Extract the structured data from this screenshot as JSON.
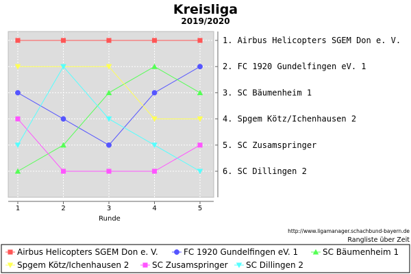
{
  "chart_data": {
    "type": "line",
    "title": "Kreisliga",
    "subtitle": "2019/2020",
    "xlabel": "Runde",
    "x": [
      1,
      2,
      3,
      4,
      5
    ],
    "ylim": [
      1,
      6
    ],
    "y_inverted": true,
    "grid": true,
    "legend_position": "bottom",
    "right_labels": [
      "1. Airbus Helicopters SGEM Don e. V.",
      "2. FC 1920 Gundelfingen eV.  1",
      "3. SC Bäumenheim 1",
      "4. Spgem Kötz/Ichenhausen  2",
      "5. SC Zusamspringer",
      "6. SC Dillingen 2"
    ],
    "series": [
      {
        "name": "Airbus Helicopters SGEM Don e. V.",
        "values": [
          1,
          1,
          1,
          1,
          1
        ],
        "color": "#ff5555",
        "marker": "square"
      },
      {
        "name": "FC 1920 Gundelfingen eV.  1",
        "values": [
          3,
          4,
          5,
          3,
          2
        ],
        "color": "#5555ff",
        "marker": "circle"
      },
      {
        "name": "SC Bäumenheim 1",
        "values": [
          6,
          5,
          3,
          2,
          3
        ],
        "color": "#55ff55",
        "marker": "triangle-up"
      },
      {
        "name": "Spgem Kötz/Ichenhausen  2",
        "values": [
          2,
          2,
          2,
          4,
          4
        ],
        "color": "#ffff55",
        "marker": "triangle-down"
      },
      {
        "name": "SC Zusamspringer",
        "values": [
          4,
          6,
          6,
          6,
          5
        ],
        "color": "#ff55ff",
        "marker": "square"
      },
      {
        "name": "SC Dillingen 2",
        "values": [
          5,
          2,
          4,
          5,
          6
        ],
        "color": "#55ffff",
        "marker": "triangle-down"
      }
    ],
    "source_url": "http://www.ligamanager.schachbund-bayern.de",
    "source_caption": "Rangliste über Zeit"
  }
}
